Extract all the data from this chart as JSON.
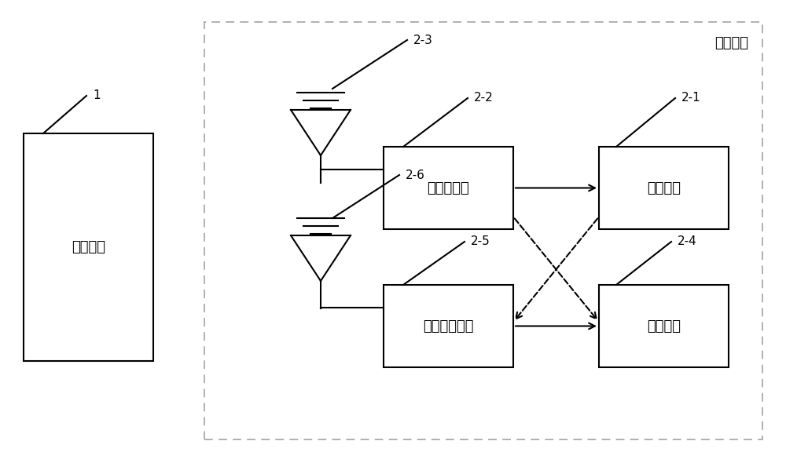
{
  "bg_color": "#ffffff",
  "border_color": "#000000",
  "text_color": "#000000",
  "title_terminal": "终端设备",
  "label_base": "能源基站",
  "label_converter": "能量转换器",
  "label_battery1": "第一电池",
  "label_battery2": "第二电池",
  "label_transceiver": "数据收发模块",
  "ref_1": "1",
  "ref_21": "2-1",
  "ref_22": "2-2",
  "ref_23": "2-3",
  "ref_24": "2-4",
  "ref_25": "2-5",
  "ref_26": "2-6",
  "dashed_border": "#888888",
  "font_size_label": 13,
  "font_size_ref": 11
}
